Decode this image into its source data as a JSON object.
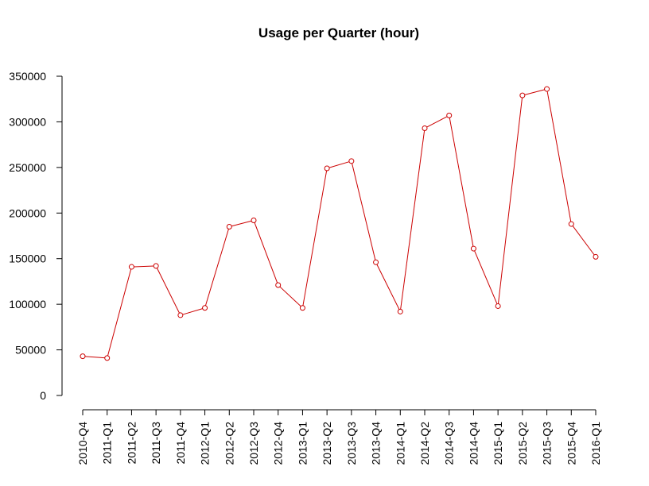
{
  "chart_data": {
    "type": "line",
    "title": "Usage per Quarter (hour)",
    "xlabel": "",
    "ylabel": "",
    "categories": [
      "2010-Q4",
      "2011-Q1",
      "2011-Q2",
      "2011-Q3",
      "2011-Q4",
      "2012-Q1",
      "2012-Q2",
      "2012-Q3",
      "2012-Q4",
      "2013-Q1",
      "2013-Q2",
      "2013-Q3",
      "2013-Q4",
      "2014-Q1",
      "2014-Q2",
      "2014-Q3",
      "2014-Q4",
      "2015-Q1",
      "2015-Q2",
      "2015-Q3",
      "2015-Q4",
      "2016-Q1"
    ],
    "series": [
      {
        "values": [
          43000,
          41000,
          141000,
          142000,
          88000,
          96000,
          185000,
          192000,
          121000,
          96000,
          249000,
          257000,
          146000,
          92000,
          293000,
          307000,
          161000,
          98000,
          329000,
          336000,
          188000,
          152000
        ]
      }
    ],
    "ylim": [
      0,
      350000
    ],
    "yticks": [
      0,
      50000,
      100000,
      150000,
      200000,
      250000,
      300000,
      350000
    ],
    "ytick_labels": [
      "0",
      "50000",
      "100000",
      "150000",
      "200000",
      "250000",
      "300000",
      "350000"
    ],
    "grid": false,
    "legend": "none",
    "colors": {
      "series": "#cc0000",
      "axis": "#000000",
      "background": "#ffffff"
    },
    "marker": "open-circle"
  }
}
